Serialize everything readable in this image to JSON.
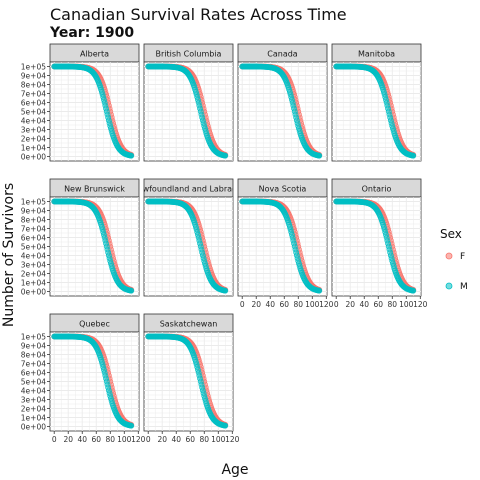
{
  "chart_data": {
    "type": "scatter",
    "title": "Canadian Survival Rates Across Time",
    "subtitle": "Year: 1900",
    "xlabel": "Age",
    "ylabel": "Number of Survivors",
    "x_ticks": [
      "0",
      "20",
      "40",
      "60",
      "80",
      "100",
      "120"
    ],
    "y_ticks": [
      "0e+00",
      "1e+04",
      "2e+04",
      "3e+04",
      "4e+04",
      "5e+04",
      "6e+04",
      "7e+04",
      "8e+04",
      "9e+04",
      "1e+05"
    ],
    "xlim": [
      -6,
      121
    ],
    "ylim": [
      -5000,
      105000
    ],
    "grid": true,
    "legend": {
      "title": "Sex",
      "placement": "right",
      "entries": [
        {
          "label": "F",
          "color": "#F8766D"
        },
        {
          "label": "M",
          "color": "#00BFC4"
        }
      ]
    },
    "series": [
      {
        "name": "F",
        "color": "#F8766D",
        "median_age": 80,
        "spread": 7.5
      },
      {
        "name": "M",
        "color": "#00BFC4",
        "median_age": 75,
        "spread": 7.5
      }
    ],
    "x_values_note": "ages 0 to 110",
    "panels": [
      {
        "label": "Alberta"
      },
      {
        "label": "British Columbia"
      },
      {
        "label": "Canada"
      },
      {
        "label": "Manitoba"
      },
      {
        "label": "New Brunswick"
      },
      {
        "label": "Newfoundland and Labrador"
      },
      {
        "label": "Nova Scotia"
      },
      {
        "label": "Ontario"
      },
      {
        "label": "Quebec"
      },
      {
        "label": "Saskatchewan"
      }
    ]
  }
}
